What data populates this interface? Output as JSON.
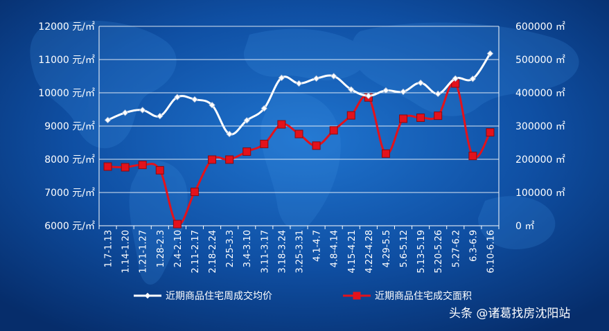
{
  "chart_data": {
    "type": "line",
    "categories": [
      "1.7-1.13",
      "1.14-1.20",
      "1.21-1.27",
      "1.28-2.3",
      "2.4-2.10",
      "2.11-2.17",
      "2.18-2.24",
      "2.25-3.3",
      "3.4-3.10",
      "3.11-3.17",
      "3.18-3.24",
      "3.25-3.31",
      "4.1-4.7",
      "4.8-4.14",
      "4.15-4.21",
      "4.22-4.28",
      "4.29-5.5",
      "5.6-5.12",
      "5.13-5.19",
      "5.20-5.26",
      "5.27-6.2",
      "6.3-6.9",
      "6.10-6.16"
    ],
    "series": [
      {
        "name": "近期商品住宅周成交均价",
        "axis": "left",
        "color": "#ffffff",
        "values": [
          9180,
          9400,
          9480,
          9300,
          9870,
          9800,
          9630,
          8760,
          9170,
          9530,
          10450,
          10280,
          10430,
          10500,
          10100,
          9910,
          10070,
          10030,
          10300,
          9970,
          10430,
          10420,
          11180
        ]
      },
      {
        "name": "近期商品住宅成交面积",
        "axis": "right",
        "color": "#e3121b",
        "values": [
          178000,
          176000,
          183000,
          167000,
          5000,
          102000,
          199000,
          199000,
          223000,
          246000,
          305000,
          276000,
          241000,
          287000,
          332000,
          386000,
          217000,
          322000,
          325000,
          331000,
          428000,
          210000,
          281000
        ]
      }
    ],
    "y_left": {
      "min": 6000,
      "max": 12000,
      "step": 1000,
      "unit": "元/㎡"
    },
    "y_right": {
      "min": 0,
      "max": 600000,
      "step": 100000,
      "unit": "㎡"
    },
    "grid": true,
    "legend": "bottom"
  },
  "watermark": "头条 @诸葛找房沈阳站"
}
